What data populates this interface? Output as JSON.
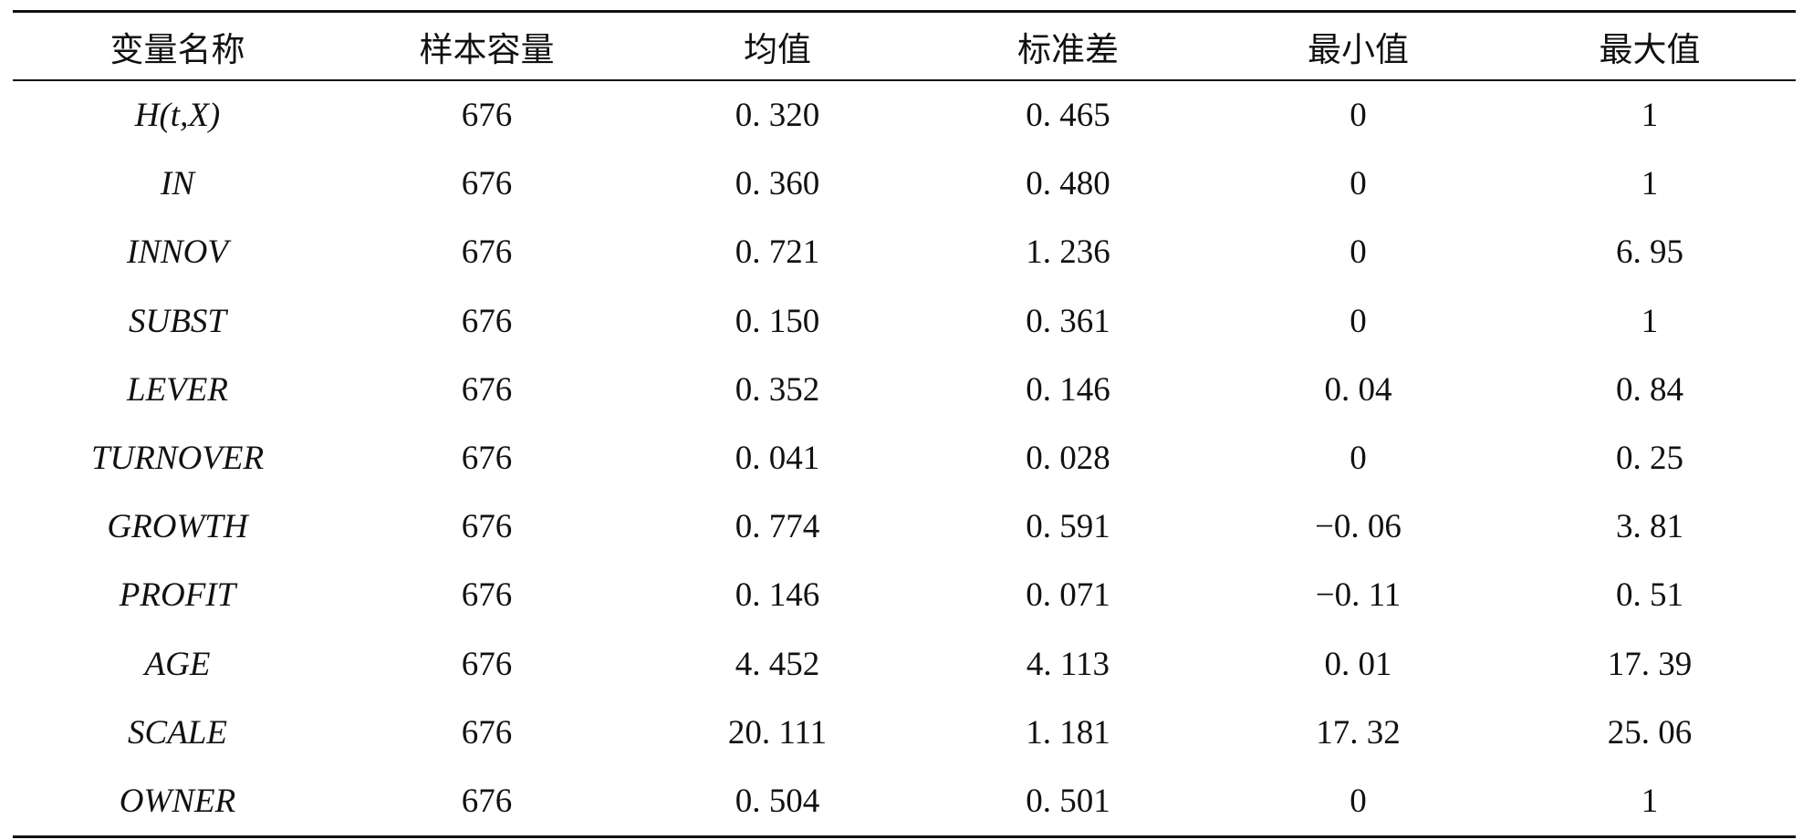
{
  "table": {
    "headers": [
      "变量名称",
      "样本容量",
      "均值",
      "标准差",
      "最小值",
      "最大值"
    ],
    "rows": [
      [
        "H(t,X)",
        "676",
        "0. 320",
        "0. 465",
        "0",
        "1"
      ],
      [
        "IN",
        "676",
        "0. 360",
        "0. 480",
        "0",
        "1"
      ],
      [
        "INNOV",
        "676",
        "0. 721",
        "1. 236",
        "0",
        "6. 95"
      ],
      [
        "SUBST",
        "676",
        "0. 150",
        "0. 361",
        "0",
        "1"
      ],
      [
        "LEVER",
        "676",
        "0. 352",
        "0. 146",
        "0. 04",
        "0. 84"
      ],
      [
        "TURNOVER",
        "676",
        "0. 041",
        "0. 028",
        "0",
        "0. 25"
      ],
      [
        "GROWTH",
        "676",
        "0. 774",
        "0. 591",
        "−0. 06",
        "3. 81"
      ],
      [
        "PROFIT",
        "676",
        "0. 146",
        "0. 071",
        "−0. 11",
        "0. 51"
      ],
      [
        "AGE",
        "676",
        "4. 452",
        "4. 113",
        "0. 01",
        "17. 39"
      ],
      [
        "SCALE",
        "676",
        "20. 111",
        "1. 181",
        "17. 32",
        "25. 06"
      ],
      [
        "OWNER",
        "676",
        "0. 504",
        "0. 501",
        "0",
        "1"
      ]
    ]
  }
}
